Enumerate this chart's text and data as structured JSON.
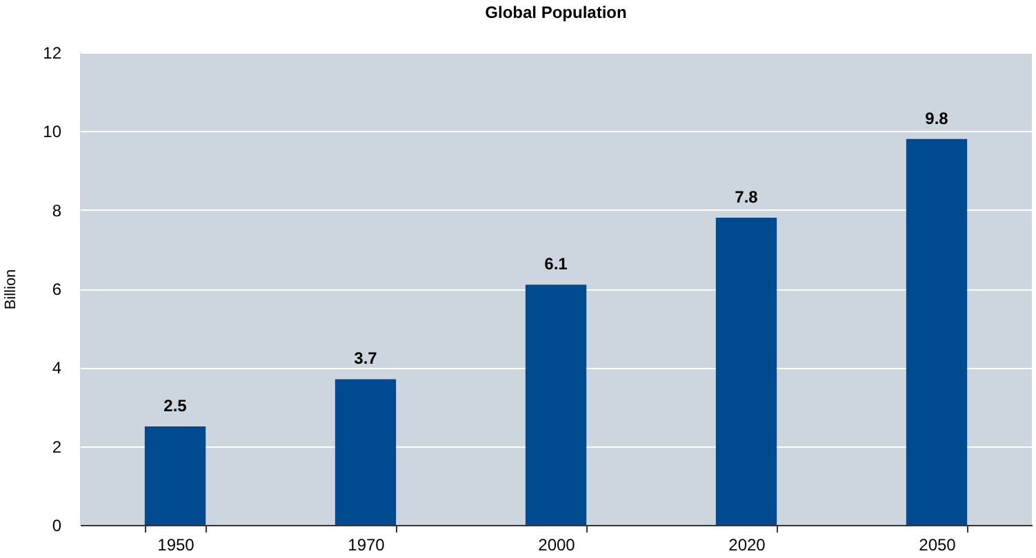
{
  "chart_data": {
    "type": "bar",
    "title": "Global Population",
    "ylabel": "Billion",
    "categories": [
      "1950",
      "1970",
      "2000",
      "2020",
      "2050"
    ],
    "values": [
      2.5,
      3.7,
      6.1,
      7.8,
      9.8
    ],
    "color": "#004a8f",
    "ylim": [
      0,
      12
    ],
    "yticks": [
      0,
      2,
      4,
      6,
      8,
      10,
      12
    ],
    "grid": "y",
    "data_labels": true
  }
}
